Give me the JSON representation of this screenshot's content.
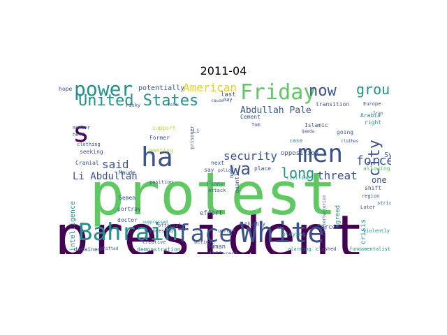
{
  "figure": {
    "title": "2011-04"
  },
  "word_cloud": {
    "colors": {
      "deep_purple": "#440154",
      "indigo": "#3b528b",
      "teal": "#21918c",
      "green": "#5ec962",
      "yellow_green": "#b5de2b",
      "yellow": "#e6d020",
      "light_blue": "#4a9bb0"
    },
    "words": [
      {
        "text": "president",
        "color": "#440154"
      },
      {
        "text": "protest",
        "color": "#5ec962"
      },
      {
        "text": "Bahrain",
        "color": "#21918c"
      },
      {
        "text": "face",
        "color": "#3b528b"
      },
      {
        "text": "White",
        "color": "#3b528b"
      },
      {
        "text": "ha",
        "color": "#3b528b"
      },
      {
        "text": "s",
        "color": "#440154"
      },
      {
        "text": "men",
        "color": "#3b528b"
      },
      {
        "text": "power",
        "color": "#21918c"
      },
      {
        "text": "Friday",
        "color": "#5ec962"
      },
      {
        "text": "United States",
        "color": "#21918c"
      },
      {
        "text": "now",
        "color": "#3b528b"
      },
      {
        "text": "group",
        "color": "#21918c"
      },
      {
        "text": "city",
        "color": "#3b528b"
      },
      {
        "text": "American",
        "color": "#e6d020"
      },
      {
        "text": "wa",
        "color": "#3b528b"
      },
      {
        "text": "security",
        "color": "#3b528b"
      },
      {
        "text": "force",
        "color": "#3b528b"
      },
      {
        "text": "long",
        "color": "#21918c"
      },
      {
        "text": "said",
        "color": "#3b528b"
      },
      {
        "text": "country",
        "color": "#21918c"
      },
      {
        "text": "threat",
        "color": "#3b528b"
      },
      {
        "text": "Li Abdullah",
        "color": "#3b528b"
      },
      {
        "text": "Abdullah Pale",
        "color": "#3b528b"
      },
      {
        "text": "potentially",
        "color": "#3b528b"
      },
      {
        "text": "intelligence",
        "color": "#21918c"
      },
      {
        "text": "one",
        "color": "#3b528b"
      },
      {
        "text": "Syria",
        "color": "#3b528b"
      },
      {
        "text": "crisis",
        "color": "#21918c"
      },
      {
        "text": "agreed",
        "color": "#21918c"
      },
      {
        "text": "opposition",
        "color": "#3b528b"
      },
      {
        "text": "effort",
        "color": "#3b528b"
      },
      {
        "text": "forced",
        "color": "#3b528b"
      },
      {
        "text": "Human",
        "color": "#3b528b"
      },
      {
        "text": "playing",
        "color": "#21918c"
      },
      {
        "text": "different",
        "color": "#3b528b"
      },
      {
        "text": "demonstration",
        "color": "#21918c"
      },
      {
        "text": "detained",
        "color": "#3b528b"
      },
      {
        "text": "shifted",
        "color": "#3b528b"
      },
      {
        "text": "alarming",
        "color": "#21918c"
      },
      {
        "text": "clashed",
        "color": "#3b528b"
      },
      {
        "text": "fundamentalist",
        "color": "#21918c"
      },
      {
        "text": "unrest",
        "color": "#3b528b"
      },
      {
        "text": "authority",
        "color": "#3b528b"
      },
      {
        "text": "official",
        "color": "#3b528b"
      },
      {
        "text": "doctor",
        "color": "#3b528b"
      },
      {
        "text": "portray",
        "color": "#3b528b"
      },
      {
        "text": "suppressed",
        "color": "#3b528b"
      },
      {
        "text": "Semen",
        "color": "#3b528b"
      },
      {
        "text": "Cranial",
        "color": "#3b528b"
      },
      {
        "text": "Maude",
        "color": "#3b528b"
      },
      {
        "text": "meeting",
        "color": "#b5de2b"
      },
      {
        "text": "support",
        "color": "#b5de2b"
      },
      {
        "text": "Former",
        "color": "#3b528b"
      },
      {
        "text": "prisoner",
        "color": "#3b528b"
      },
      {
        "text": "seeking",
        "color": "#3b528b"
      },
      {
        "text": "clothing",
        "color": "#3b528b"
      },
      {
        "text": "held",
        "color": "#3b528b"
      },
      {
        "text": "member",
        "color": "#3b528b"
      },
      {
        "text": "hope",
        "color": "#3b528b"
      },
      {
        "text": "risky",
        "color": "#3b528b"
      },
      {
        "text": "role",
        "color": "#3b528b"
      },
      {
        "text": "last",
        "color": "#3b528b"
      },
      {
        "text": "may",
        "color": "#3b528b"
      },
      {
        "text": "cause",
        "color": "#3b528b"
      },
      {
        "text": "transition",
        "color": "#3b528b"
      },
      {
        "text": "Europe",
        "color": "#3b528b"
      },
      {
        "text": "Arabia",
        "color": "#21918c"
      },
      {
        "text": "right",
        "color": "#21918c"
      },
      {
        "text": "Islamic",
        "color": "#3b528b"
      },
      {
        "text": "Cement",
        "color": "#3b528b"
      },
      {
        "text": "Tom",
        "color": "#3b528b"
      },
      {
        "text": "case",
        "color": "#21918c"
      },
      {
        "text": "going",
        "color": "#3b528b"
      },
      {
        "text": "Qaeda",
        "color": "#3b528b"
      },
      {
        "text": "clothes",
        "color": "#3b528b"
      },
      {
        "text": "Iran",
        "color": "#3b528b"
      },
      {
        "text": "place",
        "color": "#3b528b"
      },
      {
        "text": "quanti",
        "color": "#3b528b"
      },
      {
        "text": "name",
        "color": "#3b528b"
      },
      {
        "text": "Funny",
        "color": "#21918c"
      },
      {
        "text": "next",
        "color": "#3b528b"
      },
      {
        "text": "say",
        "color": "#3b528b"
      },
      {
        "text": "policy",
        "color": "#3b528b"
      },
      {
        "text": "allowing",
        "color": "#5ec962"
      },
      {
        "text": "shift",
        "color": "#3b528b"
      },
      {
        "text": "Later",
        "color": "#3b528b"
      },
      {
        "text": "strict",
        "color": "#3b528b"
      },
      {
        "text": "region",
        "color": "#3b528b"
      },
      {
        "text": "violently",
        "color": "#21918c"
      },
      {
        "text": "creative",
        "color": "#3b528b"
      },
      {
        "text": "believe",
        "color": "#3b528b"
      },
      {
        "text": "attack",
        "color": "#3b528b"
      },
      {
        "text": "position",
        "color": "#3b528b"
      },
      {
        "text": "suppressed",
        "color": "#21918c"
      },
      {
        "text": "counterterrorism",
        "color": "#3b528b"
      },
      {
        "text": "civilian",
        "color": "#21918c"
      },
      {
        "text": "Li",
        "color": "#3b528b"
      }
    ]
  }
}
